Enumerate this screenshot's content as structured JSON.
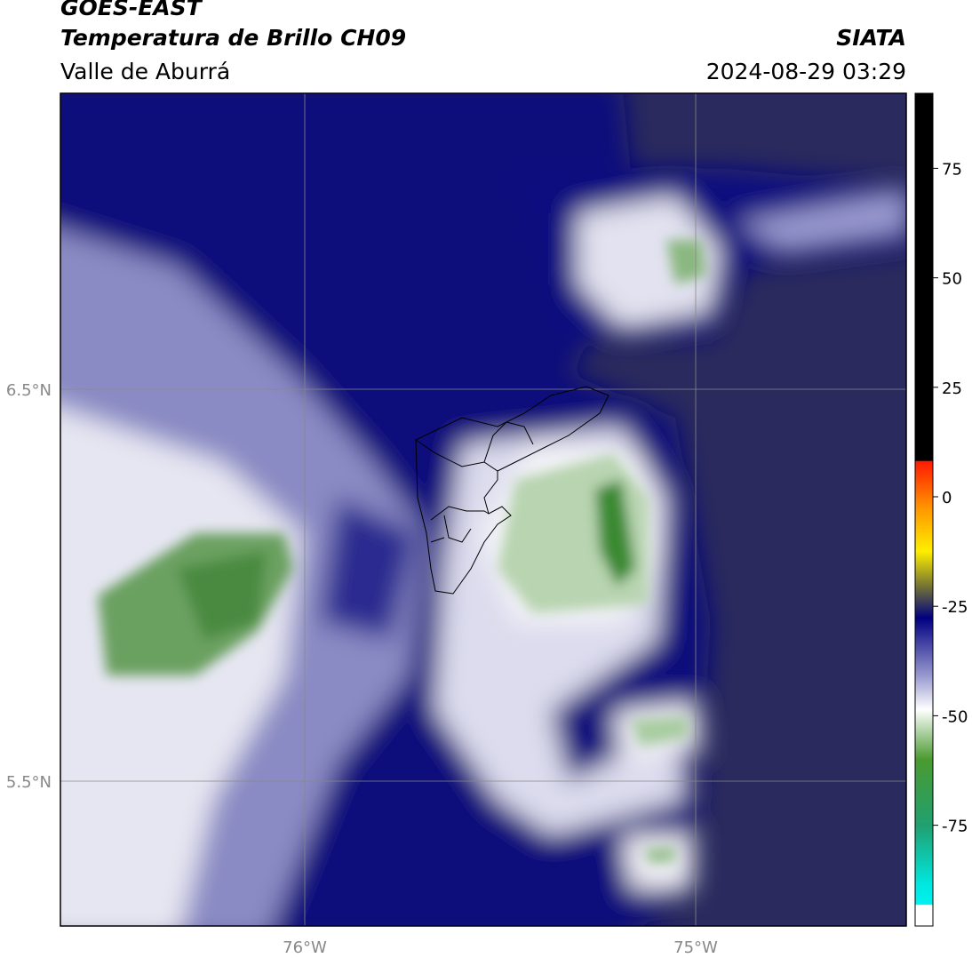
{
  "header": {
    "satellite": "GOES-EAST",
    "product": "Temperatura de Brillo CH09",
    "region": "Valle de Aburrá",
    "source": "SIATA",
    "datetime": "2024-08-29 03:29"
  },
  "map": {
    "lat_labels": [
      "6.5°N",
      "5.5°N"
    ],
    "lon_labels": [
      "76°W",
      "75°W"
    ]
  },
  "colorbar": {
    "ticks": [
      75,
      50,
      25,
      0,
      -25,
      -50,
      -75
    ]
  }
}
